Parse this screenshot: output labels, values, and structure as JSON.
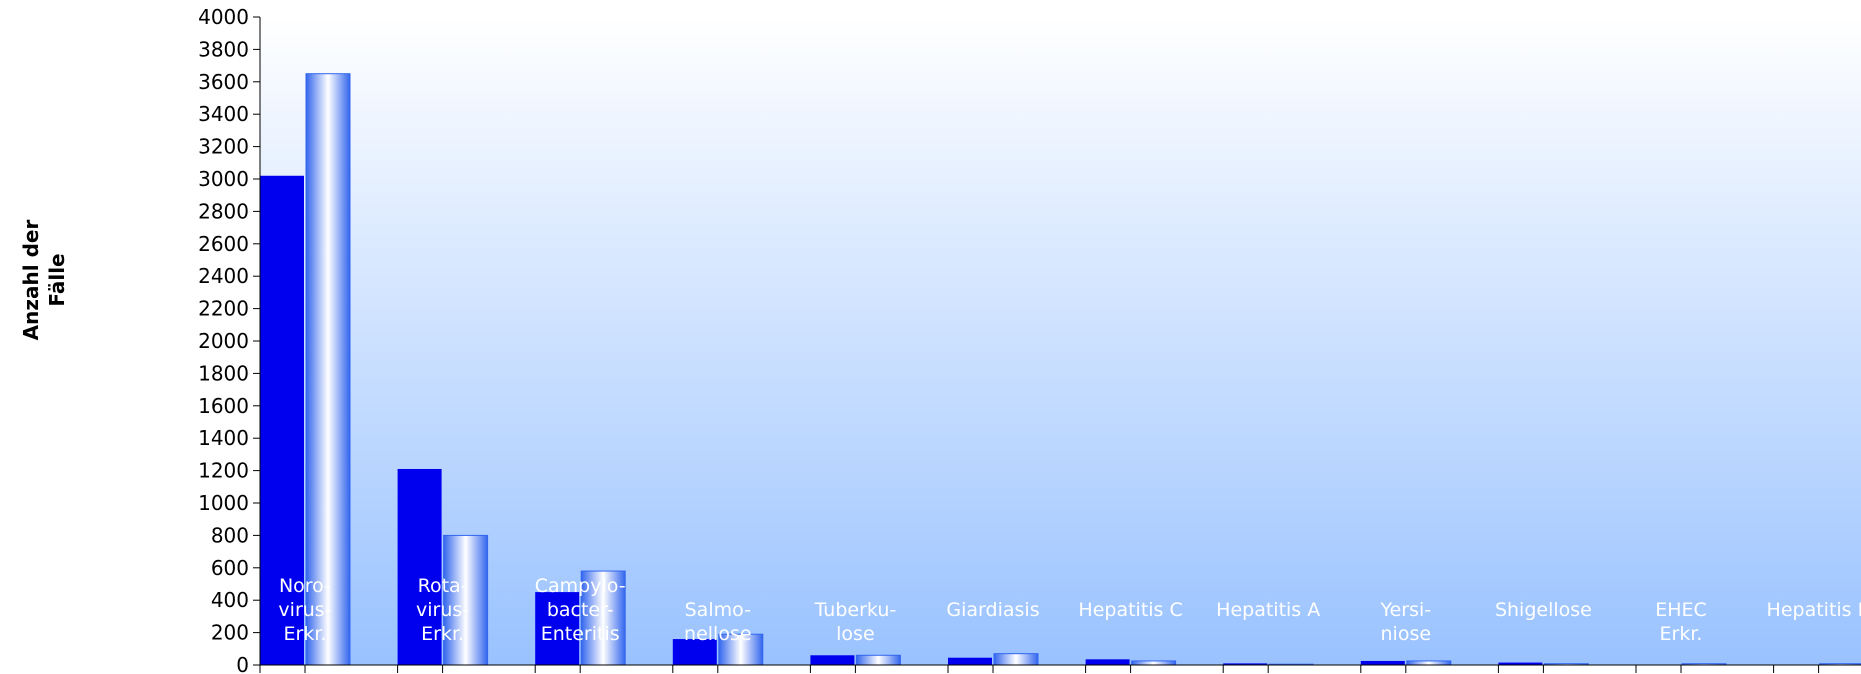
{
  "chart_data": {
    "type": "bar",
    "ylabel": "Anzahl der\nFälle",
    "ylim": [
      0,
      4000
    ],
    "ytick_step": 200,
    "categories": [
      "Noro-\nvirus-\nErkr.",
      "Rota-\nvirus-\nErkr.",
      "Campylo-\nbacter-\nEnteritis",
      "Salmo-\nnellose",
      "Tuberku-\nlose",
      "Giardiasis",
      "Hepatitis C",
      "Hepatitis A",
      "Yersi-\nniose",
      "Shigellose",
      "EHEC\nErkr.",
      "Hepatitis B"
    ],
    "series": [
      {
        "values": [
          3020,
          1210,
          450,
          160,
          60,
          45,
          35,
          10,
          25,
          15,
          3,
          3
        ]
      },
      {
        "values": [
          3650,
          800,
          580,
          190,
          60,
          70,
          25,
          5,
          25,
          8,
          8,
          8
        ]
      }
    ],
    "colors": {
      "series1": "#0000ee",
      "series2_edge": "#3366ee",
      "series2_center": "#ffffff",
      "bg_top": "#ffffff",
      "bg_bottom": "#99c2ff",
      "category_label": "#ffffff"
    },
    "grid": false
  }
}
